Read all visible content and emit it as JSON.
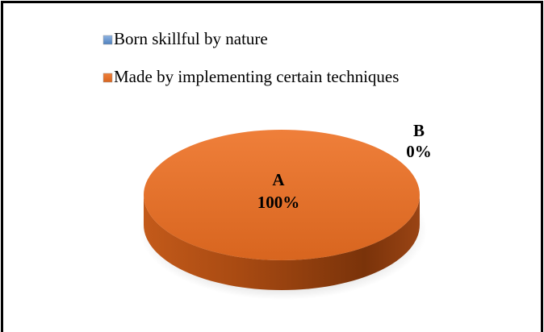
{
  "chart_data": {
    "type": "pie3d",
    "categories": [
      "Born skillful by nature",
      "Made by implementing certain techniques"
    ],
    "values": [
      0,
      100
    ],
    "value_labels": [
      "0%",
      "100%"
    ],
    "slice_labels": [
      "B",
      "A"
    ],
    "colors": [
      "#4f81bd",
      "#e46c25"
    ],
    "legend": "top"
  }
}
